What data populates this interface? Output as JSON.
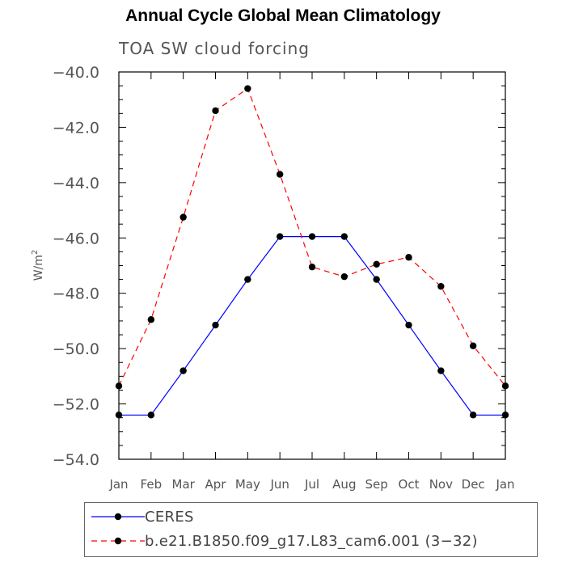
{
  "chart_data": {
    "type": "line",
    "title": "Annual Cycle Global Mean Climatology",
    "subtitle": "TOA SW cloud forcing",
    "ylabel": "W/m²",
    "ylabel_base": "W/m",
    "ylabel_sup": "2",
    "xlabel": "",
    "categories": [
      "Jan",
      "Feb",
      "Mar",
      "Apr",
      "May",
      "Jun",
      "Jul",
      "Aug",
      "Sep",
      "Oct",
      "Nov",
      "Dec",
      "Jan"
    ],
    "ylim": [
      -54.0,
      -40.0
    ],
    "yticks": [
      -54.0,
      -52.0,
      -50.0,
      -48.0,
      -46.0,
      -44.0,
      -42.0,
      -40.0
    ],
    "ytick_labels": [
      "−54.0",
      "−52.0",
      "−50.0",
      "−48.0",
      "−46.0",
      "−44.0",
      "−42.0",
      "−40.0"
    ],
    "grid": false,
    "legend_position": "bottom",
    "series": [
      {
        "name": "CERES",
        "color": "#0000ff",
        "dash": "solid",
        "values": [
          -52.4,
          -52.4,
          -50.8,
          -49.15,
          -47.5,
          -45.95,
          -45.95,
          -45.95,
          -47.5,
          -49.15,
          -50.8,
          -52.4,
          -52.4
        ]
      },
      {
        "name": "b.e21.B1850.f09_g17.L83_cam6.001 (3−32)",
        "color": "#ff0000",
        "dash": "dashed",
        "values": [
          -51.35,
          -48.95,
          -45.25,
          -41.4,
          -40.6,
          -43.7,
          -47.05,
          -47.4,
          -46.95,
          -46.7,
          -47.75,
          -49.9,
          -51.35
        ]
      }
    ]
  }
}
